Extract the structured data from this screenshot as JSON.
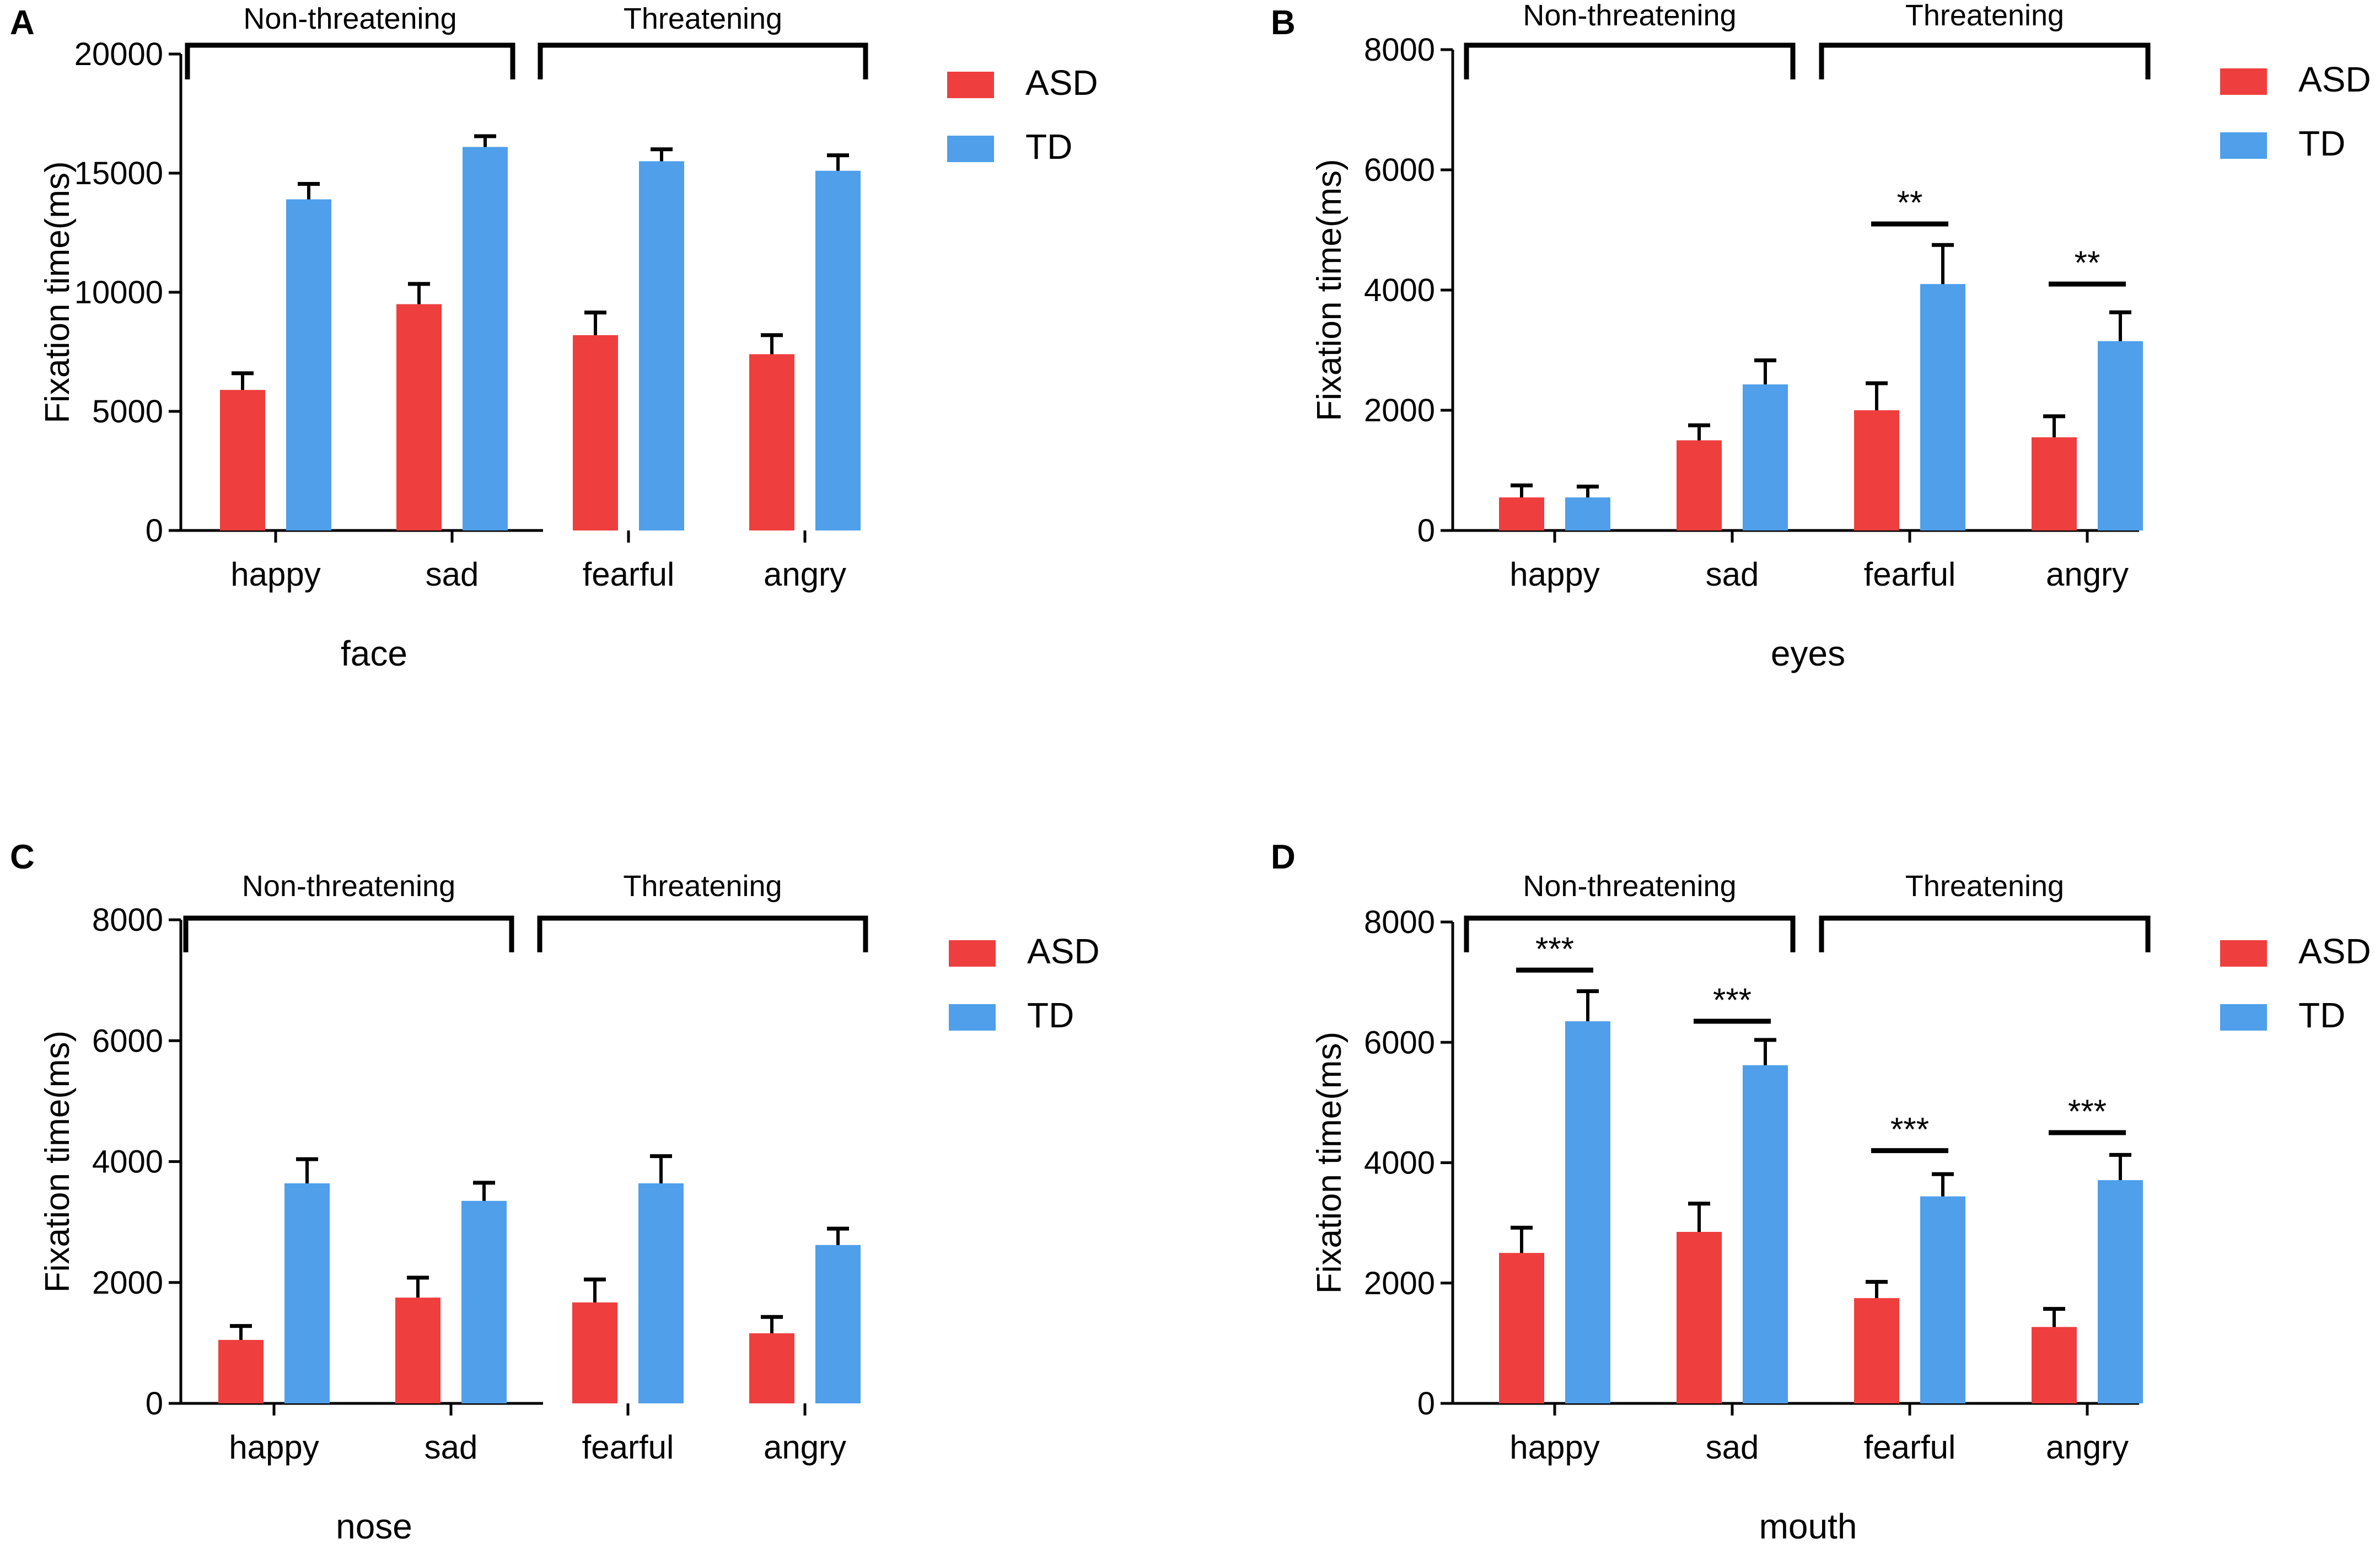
{
  "colors": {
    "asd": "#ef3e3e",
    "td": "#4f9fea",
    "axis": "#000000",
    "background": "#ffffff"
  },
  "chart_data": [
    {
      "panel": "A",
      "type": "bar",
      "title": "",
      "xlabel": "face",
      "ylabel": "Fixation time(ms)",
      "ylim": [
        0,
        20000
      ],
      "yticks": [
        "0",
        "5000",
        "10000",
        "15000",
        "20000"
      ],
      "categories": [
        "happy",
        "sad",
        "fearful",
        "angry"
      ],
      "series": [
        {
          "name": "ASD",
          "values": [
            5900,
            9500,
            8200,
            7400
          ],
          "errors": [
            700,
            850,
            950,
            800
          ]
        },
        {
          "name": "TD",
          "values": [
            13900,
            16100,
            15500,
            15100
          ],
          "errors": [
            650,
            450,
            500,
            650
          ]
        }
      ],
      "groups": [
        {
          "label": "Non-threatening",
          "from": 0,
          "to": 1
        },
        {
          "label": "Threatening",
          "from": 2,
          "to": 3
        }
      ],
      "significance": [],
      "legend": [
        "ASD",
        "TD"
      ],
      "legend_position": "right"
    },
    {
      "panel": "B",
      "type": "bar",
      "title": "",
      "xlabel": "eyes",
      "ylabel": "Fixation time(ms)",
      "ylim": [
        0,
        8000
      ],
      "yticks": [
        "0",
        "2000",
        "4000",
        "6000",
        "8000"
      ],
      "categories": [
        "happy",
        "sad",
        "fearful",
        "angry"
      ],
      "series": [
        {
          "name": "ASD",
          "values": [
            550,
            1500,
            2000,
            1550
          ],
          "errors": [
            200,
            250,
            450,
            350
          ]
        },
        {
          "name": "TD",
          "values": [
            550,
            2430,
            4100,
            3150
          ],
          "errors": [
            180,
            400,
            650,
            480
          ]
        }
      ],
      "groups": [
        {
          "label": "Non-threatening",
          "from": 0,
          "to": 1
        },
        {
          "label": "Threatening",
          "from": 2,
          "to": 3
        }
      ],
      "significance": [
        {
          "category": 2,
          "label": "**",
          "y": 5100
        },
        {
          "category": 3,
          "label": "**",
          "y": 4100
        }
      ],
      "legend": [
        "ASD",
        "TD"
      ],
      "legend_position": "right"
    },
    {
      "panel": "C",
      "type": "bar",
      "title": "",
      "xlabel": "nose",
      "ylabel": "Fixation time(ms)",
      "ylim": [
        0,
        8000
      ],
      "yticks": [
        "0",
        "2000",
        "4000",
        "6000",
        "8000"
      ],
      "categories": [
        "happy",
        "sad",
        "fearful",
        "angry"
      ],
      "series": [
        {
          "name": "ASD",
          "values": [
            1050,
            1750,
            1670,
            1160
          ],
          "errors": [
            230,
            330,
            380,
            270
          ]
        },
        {
          "name": "TD",
          "values": [
            3640,
            3350,
            3640,
            2620
          ],
          "errors": [
            400,
            300,
            450,
            270
          ]
        }
      ],
      "groups": [
        {
          "label": "Non-threatening",
          "from": 0,
          "to": 1
        },
        {
          "label": "Threatening",
          "from": 2,
          "to": 3
        }
      ],
      "significance": [],
      "legend": [
        "ASD",
        "TD"
      ],
      "legend_position": "right"
    },
    {
      "panel": "D",
      "type": "bar",
      "title": "",
      "xlabel": "mouth",
      "ylabel": "Fixation time(ms)",
      "ylim": [
        0,
        8000
      ],
      "yticks": [
        "0",
        "2000",
        "4000",
        "6000",
        "8000"
      ],
      "categories": [
        "happy",
        "sad",
        "fearful",
        "angry"
      ],
      "series": [
        {
          "name": "ASD",
          "values": [
            2500,
            2850,
            1750,
            1270
          ],
          "errors": [
            420,
            470,
            270,
            300
          ]
        },
        {
          "name": "TD",
          "values": [
            6350,
            5620,
            3440,
            3710
          ],
          "errors": [
            500,
            420,
            370,
            420
          ]
        }
      ],
      "groups": [
        {
          "label": "Non-threatening",
          "from": 0,
          "to": 1
        },
        {
          "label": "Threatening",
          "from": 2,
          "to": 3
        }
      ],
      "significance": [
        {
          "category": 0,
          "label": "***",
          "y": 7200
        },
        {
          "category": 1,
          "label": "***",
          "y": 6350
        },
        {
          "category": 2,
          "label": "***",
          "y": 4200
        },
        {
          "category": 3,
          "label": "***",
          "y": 4500
        }
      ],
      "legend": [
        "ASD",
        "TD"
      ],
      "legend_position": "right"
    }
  ]
}
